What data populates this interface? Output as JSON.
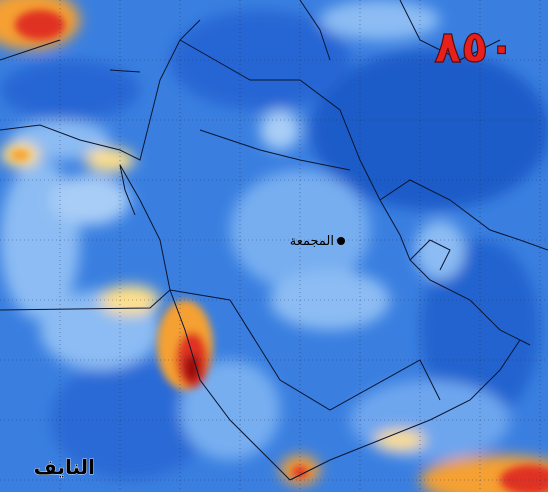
{
  "map": {
    "level_label": "٨٥٠",
    "city": "المجمعة",
    "signature": "النايف"
  }
}
